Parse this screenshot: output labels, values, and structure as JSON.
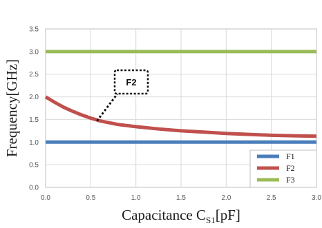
{
  "chart_data": {
    "type": "line",
    "xlabel": "Capacitance C",
    "xlabel_sub": "S1",
    "xlabel_unit": "[pF]",
    "ylabel": "Frequency[GHz]",
    "xlim": [
      0,
      3.0
    ],
    "ylim": [
      0,
      3.5
    ],
    "xticks": [
      "0.0",
      "0.5",
      "1.0",
      "1.5",
      "2.0",
      "2.5",
      "3.0"
    ],
    "yticks": [
      "0.0",
      "0.5",
      "1.0",
      "1.5",
      "2.0",
      "2.5",
      "3.0",
      "3.5"
    ],
    "grid": true,
    "legend_position": "bottom-right",
    "series": [
      {
        "name": "F1",
        "color": "#4a7ebb",
        "x": [
          0,
          0.5,
          1.0,
          1.5,
          2.0,
          2.5,
          3.0
        ],
        "y": [
          1.0,
          1.0,
          1.0,
          1.0,
          1.0,
          1.0,
          1.0
        ]
      },
      {
        "name": "F2",
        "color": "#c0504d",
        "x": [
          0,
          0.1,
          0.2,
          0.3,
          0.4,
          0.5,
          0.6,
          0.8,
          1.0,
          1.25,
          1.5,
          1.75,
          2.0,
          2.25,
          2.5,
          2.75,
          3.0
        ],
        "y": [
          2.0,
          1.88,
          1.77,
          1.68,
          1.6,
          1.53,
          1.47,
          1.39,
          1.34,
          1.29,
          1.25,
          1.22,
          1.19,
          1.17,
          1.15,
          1.14,
          1.13
        ]
      },
      {
        "name": "F3",
        "color": "#9bbb59",
        "x": [
          0,
          0.5,
          1.0,
          1.5,
          2.0,
          2.5,
          3.0
        ],
        "y": [
          3.0,
          3.0,
          3.0,
          3.0,
          3.0,
          3.0,
          3.0
        ]
      }
    ],
    "annotations": [
      {
        "text": "F2",
        "x": 0.57,
        "y": 1.47
      }
    ]
  }
}
